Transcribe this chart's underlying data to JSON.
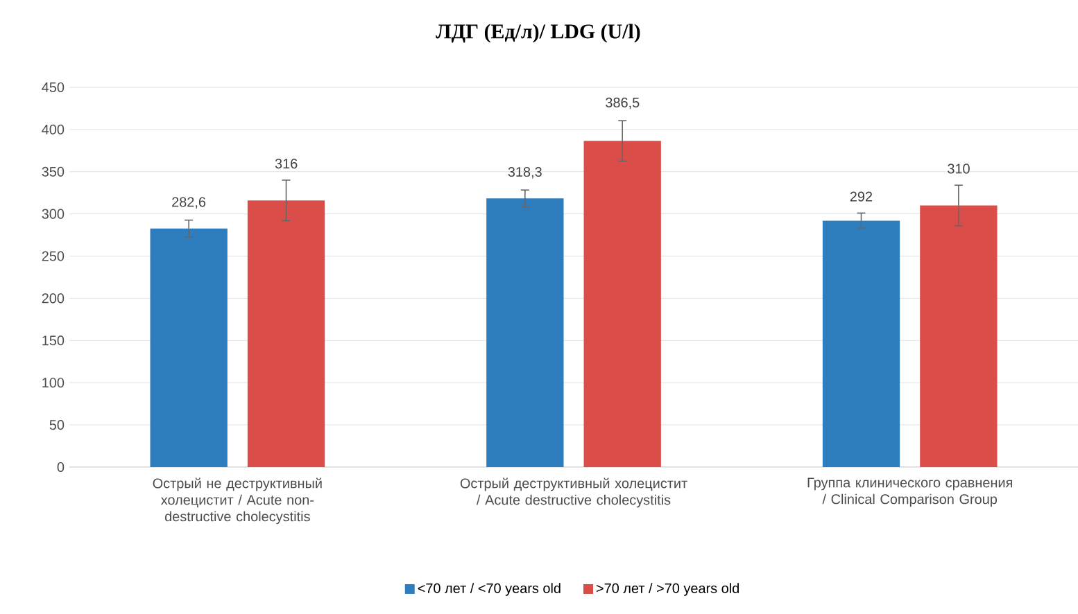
{
  "chart_data": {
    "type": "bar",
    "title": "ЛДГ (Ед/л)/ LDG (U/l)",
    "categories": [
      "Острый не деструктивный холецистит / Acute non-destructive cholecystitis",
      "Острый деструктивный холецистит / Acute destructive cholecystitis",
      "Группа клинического сравнения / Clinical Comparison Group"
    ],
    "series": [
      {
        "name": "<70 лет / <70 years old",
        "color": "#2e7ebf",
        "values": [
          282.6,
          318.3,
          292
        ],
        "errors": [
          10,
          10,
          9
        ],
        "value_labels": [
          "282,6",
          "318,3",
          "292"
        ]
      },
      {
        "name": ">70 лет / >70 years old",
        "color": "#db4d48",
        "values": [
          316,
          386.5,
          310
        ],
        "errors": [
          24,
          24,
          24
        ],
        "value_labels": [
          "316",
          "386,5",
          "310"
        ]
      }
    ],
    "ylim": [
      0,
      450
    ],
    "yticks": [
      0,
      50,
      100,
      150,
      200,
      250,
      300,
      350,
      400,
      450
    ],
    "grid": "y",
    "legend": "bottom"
  }
}
